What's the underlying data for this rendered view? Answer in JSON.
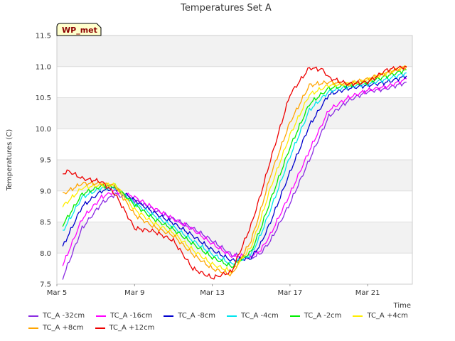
{
  "chart_data": {
    "type": "line",
    "title": "Temperatures Set A",
    "xlabel": "Time",
    "ylabel": "Temperatures (C)",
    "badge": "WP_met",
    "xlim": [
      5,
      23.3
    ],
    "ylim": [
      7.5,
      11.5
    ],
    "x_ticks": [
      {
        "value": 5,
        "label": "Mar 5"
      },
      {
        "value": 9,
        "label": "Mar 9"
      },
      {
        "value": 13,
        "label": "Mar 13"
      },
      {
        "value": 17,
        "label": "Mar 17"
      },
      {
        "value": 21,
        "label": "Mar 21"
      }
    ],
    "y_ticks": [
      7.5,
      8.0,
      8.5,
      9.0,
      9.5,
      10.0,
      10.5,
      11.0,
      11.5
    ],
    "grid": true,
    "background_bands": true,
    "legend_position": "bottom",
    "series": [
      {
        "name": "TC_A -32cm",
        "color": "#8a2be2",
        "x": [
          5.3,
          6.3,
          7.3,
          8.0,
          9.0,
          10.0,
          11.0,
          12.0,
          13.0,
          14.0,
          15.0,
          15.5,
          16.0,
          17.0,
          18.0,
          19.0,
          20.0,
          21.0,
          22.0,
          23.0
        ],
        "y": [
          7.6,
          8.4,
          8.8,
          8.95,
          8.85,
          8.7,
          8.55,
          8.4,
          8.2,
          7.97,
          7.92,
          8.0,
          8.2,
          8.8,
          9.5,
          10.2,
          10.45,
          10.6,
          10.65,
          10.75
        ]
      },
      {
        "name": "TC_A -16cm",
        "color": "#ff00ff",
        "x": [
          5.3,
          6.3,
          7.3,
          8.0,
          9.0,
          10.0,
          11.0,
          12.0,
          13.0,
          14.0,
          15.0,
          15.5,
          16.0,
          17.0,
          18.0,
          19.0,
          20.0,
          21.0,
          22.0,
          23.0
        ],
        "y": [
          7.8,
          8.55,
          8.9,
          9.0,
          8.9,
          8.72,
          8.55,
          8.38,
          8.15,
          7.95,
          7.95,
          8.05,
          8.3,
          8.95,
          9.65,
          10.3,
          10.5,
          10.62,
          10.68,
          10.8
        ]
      },
      {
        "name": "TC_A -8cm",
        "color": "#0000cd",
        "x": [
          5.3,
          6.3,
          7.3,
          8.0,
          9.0,
          10.0,
          11.0,
          12.0,
          13.0,
          14.0,
          15.0,
          15.5,
          16.0,
          17.0,
          18.0,
          19.0,
          20.0,
          21.0,
          22.0,
          23.0
        ],
        "y": [
          8.1,
          8.75,
          9.0,
          9.05,
          8.85,
          8.65,
          8.48,
          8.28,
          8.05,
          7.88,
          7.92,
          8.15,
          8.5,
          9.3,
          10.05,
          10.55,
          10.65,
          10.7,
          10.75,
          10.85
        ]
      },
      {
        "name": "TC_A -4cm",
        "color": "#00e5ee",
        "x": [
          5.3,
          6.3,
          7.3,
          8.0,
          9.0,
          10.0,
          11.0,
          12.0,
          13.0,
          14.0,
          15.0,
          15.5,
          16.0,
          17.0,
          18.0,
          19.0,
          20.0,
          21.0,
          22.0,
          23.0
        ],
        "y": [
          8.35,
          8.9,
          9.05,
          9.05,
          8.8,
          8.6,
          8.42,
          8.2,
          7.98,
          7.82,
          7.97,
          8.3,
          8.7,
          9.55,
          10.3,
          10.6,
          10.68,
          10.72,
          10.8,
          10.9
        ]
      },
      {
        "name": "TC_A -2cm",
        "color": "#00ee00",
        "x": [
          5.3,
          6.3,
          7.3,
          8.0,
          9.0,
          10.0,
          11.0,
          12.0,
          13.0,
          14.0,
          15.0,
          15.5,
          16.0,
          17.0,
          18.0,
          19.0,
          20.0,
          21.0,
          22.0,
          23.0
        ],
        "y": [
          8.45,
          8.95,
          9.08,
          9.08,
          8.78,
          8.55,
          8.38,
          8.15,
          7.93,
          7.78,
          8.02,
          8.4,
          8.85,
          9.7,
          10.4,
          10.65,
          10.7,
          10.75,
          10.85,
          10.95
        ]
      },
      {
        "name": "TC_A +4cm",
        "color": "#ffee00",
        "x": [
          5.3,
          6.3,
          7.3,
          8.0,
          9.0,
          10.0,
          11.0,
          12.0,
          13.0,
          14.0,
          15.0,
          15.5,
          16.0,
          17.0,
          18.0,
          19.0,
          20.0,
          21.0,
          22.0,
          23.0
        ],
        "y": [
          8.75,
          9.05,
          9.1,
          9.1,
          8.7,
          8.48,
          8.32,
          8.05,
          7.82,
          7.7,
          8.1,
          8.55,
          9.05,
          9.9,
          10.55,
          10.7,
          10.72,
          10.78,
          10.9,
          11.0
        ]
      },
      {
        "name": "TC_A +8cm",
        "color": "#ffa500",
        "x": [
          5.3,
          6.3,
          7.3,
          8.0,
          9.0,
          10.0,
          11.0,
          12.0,
          13.0,
          14.0,
          15.0,
          15.5,
          16.0,
          17.0,
          18.0,
          19.0,
          20.0,
          21.0,
          22.0,
          23.0
        ],
        "y": [
          8.95,
          9.12,
          9.12,
          9.08,
          8.62,
          8.42,
          8.28,
          7.98,
          7.75,
          7.65,
          8.2,
          8.7,
          9.25,
          10.1,
          10.7,
          10.75,
          10.72,
          10.8,
          10.9,
          11.0
        ]
      },
      {
        "name": "TC_A +12cm",
        "color": "#ee0000",
        "x": [
          5.3,
          5.6,
          6.3,
          7.3,
          8.0,
          9.0,
          10.0,
          11.0,
          12.0,
          13.0,
          14.0,
          15.0,
          15.5,
          16.0,
          17.0,
          18.0,
          18.7,
          19.0,
          20.0,
          21.0,
          22.0,
          23.0
        ],
        "y": [
          9.28,
          9.32,
          9.2,
          9.15,
          8.95,
          8.4,
          8.35,
          8.2,
          7.75,
          7.6,
          7.7,
          8.45,
          8.95,
          9.5,
          10.55,
          10.98,
          10.95,
          10.82,
          10.72,
          10.75,
          10.95,
          11.0
        ]
      }
    ]
  }
}
